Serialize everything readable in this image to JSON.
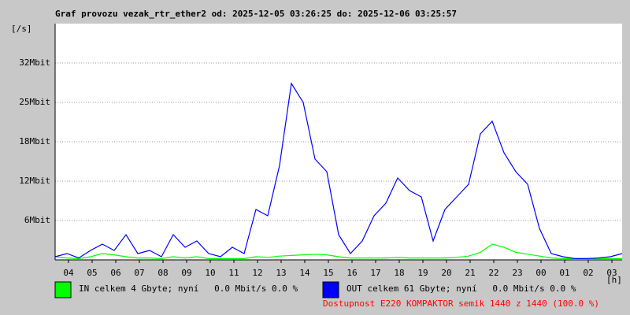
{
  "chart_data": {
    "type": "line",
    "title": "Graf provozu vezak_rtr_ether2 od: 2025-12-05 03:26:25 do: 2025-12-06 03:25:57",
    "y_label": "[/s]",
    "x_label": "[h]",
    "note": "Dostupnost E220 KOMPAKTOR semik 1440 z 1440 (100.0 %)",
    "xlim": [
      0,
      24
    ],
    "xticks": [
      {
        "value": 0.567,
        "label": "04"
      },
      {
        "value": 1.567,
        "label": "05"
      },
      {
        "value": 2.567,
        "label": "06"
      },
      {
        "value": 3.567,
        "label": "07"
      },
      {
        "value": 4.567,
        "label": "08"
      },
      {
        "value": 5.567,
        "label": "09"
      },
      {
        "value": 6.567,
        "label": "10"
      },
      {
        "value": 7.567,
        "label": "11"
      },
      {
        "value": 8.567,
        "label": "12"
      },
      {
        "value": 9.567,
        "label": "13"
      },
      {
        "value": 10.567,
        "label": "14"
      },
      {
        "value": 11.567,
        "label": "15"
      },
      {
        "value": 12.567,
        "label": "16"
      },
      {
        "value": 13.567,
        "label": "17"
      },
      {
        "value": 14.567,
        "label": "18"
      },
      {
        "value": 15.567,
        "label": "19"
      },
      {
        "value": 16.567,
        "label": "20"
      },
      {
        "value": 17.567,
        "label": "21"
      },
      {
        "value": 18.567,
        "label": "22"
      },
      {
        "value": 19.567,
        "label": "23"
      },
      {
        "value": 20.567,
        "label": "00"
      },
      {
        "value": 21.567,
        "label": "01"
      },
      {
        "value": 22.567,
        "label": "02"
      },
      {
        "value": 23.567,
        "label": "03"
      }
    ],
    "ylim": [
      0,
      37.5
    ],
    "yticks": [
      {
        "value": 6.25,
        "label": "6Mbit"
      },
      {
        "value": 12.5,
        "label": "12Mbit"
      },
      {
        "value": 18.75,
        "label": "18Mbit"
      },
      {
        "value": 25,
        "label": "25Mbit"
      },
      {
        "value": 31.25,
        "label": "32Mbit"
      }
    ],
    "grid": true,
    "x": [
      0,
      0.5,
      1,
      1.5,
      2,
      2.5,
      3,
      3.5,
      4,
      4.5,
      5,
      5.5,
      6,
      6.5,
      7,
      7.5,
      8,
      8.5,
      9,
      9.5,
      10,
      10.5,
      11,
      11.5,
      12,
      12.5,
      13,
      13.5,
      14,
      14.5,
      15,
      15.5,
      16,
      16.5,
      17,
      17.5,
      18,
      18.5,
      19,
      19.5,
      20,
      20.5,
      21,
      21.5,
      22,
      22.5,
      23,
      23.5,
      24
    ],
    "series": [
      {
        "name": "IN celkem 4 Gbyte; nyní   0.0 Mbit/s 0.0 %",
        "color": "#00ff00",
        "values": [
          0.5,
          0.3,
          0.2,
          0.5,
          1.0,
          0.8,
          0.5,
          0.3,
          0.3,
          0.2,
          0.5,
          0.3,
          0.5,
          0.2,
          0.2,
          0.2,
          0.2,
          0.5,
          0.4,
          0.6,
          0.7,
          0.8,
          0.9,
          0.8,
          0.5,
          0.3,
          0.3,
          0.3,
          0.3,
          0.4,
          0.3,
          0.3,
          0.3,
          0.3,
          0.4,
          0.6,
          1.2,
          2.5,
          2.0,
          1.2,
          0.9,
          0.6,
          0.3,
          0.2,
          0.2,
          0.2,
          0.2,
          0.2,
          0.2
        ]
      },
      {
        "name": "OUT celkem 61 Gbyte; nyní   0.0 Mbit/s 0.0 %",
        "color": "#0000ff",
        "values": [
          0.5,
          1.0,
          0.3,
          1.5,
          2.5,
          1.5,
          4.0,
          1.0,
          1.5,
          0.5,
          4.0,
          2.0,
          3.0,
          1.0,
          0.5,
          2.0,
          1.0,
          8.0,
          7.0,
          15.0,
          28.0,
          25.0,
          16.0,
          14.0,
          4.0,
          1.0,
          3.0,
          7.0,
          9.0,
          13.0,
          11.0,
          10.0,
          3.0,
          8.0,
          10.0,
          12.0,
          20.0,
          22.0,
          17.0,
          14.0,
          12.0,
          5.0,
          1.0,
          0.5,
          0.2,
          0.2,
          0.3,
          0.5,
          1.0
        ]
      }
    ]
  }
}
